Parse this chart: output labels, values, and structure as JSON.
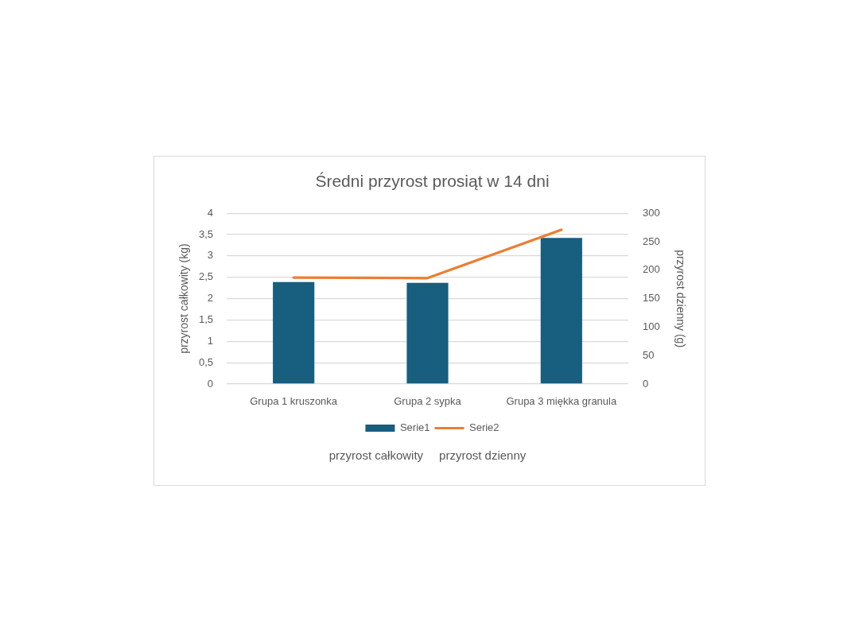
{
  "chart_data": {
    "type": "bar",
    "title": "Średni przyrost prosiąt w 14 dni",
    "ylabel": "przyrost całkowity (kg)",
    "y2label": "przyrost dzienny (g)",
    "categories": [
      "Grupa 1 kruszonka",
      "Grupa 2 sypka",
      "Grupa 3 miękka granula"
    ],
    "series": [
      {
        "name": "Serie1",
        "color": "#175e7f",
        "values": [
          2.39,
          2.37,
          3.42
        ]
      },
      {
        "name": "Serie2",
        "type": "line",
        "axis": "y2",
        "color": "#ed7d31",
        "values": [
          187,
          186,
          271
        ]
      }
    ],
    "ylim": [
      0,
      4
    ],
    "yticks": [
      0,
      {
        "value": 0.5,
        "label": "0,5"
      },
      1,
      {
        "value": 1.5,
        "label": "1,5"
      },
      2,
      {
        "value": 2.5,
        "label": "2,5"
      },
      3,
      {
        "value": 3.5,
        "label": "3,5"
      },
      4
    ],
    "y2lim": [
      0,
      300
    ],
    "y2ticks": [
      0,
      50,
      100,
      150,
      200,
      250,
      300
    ],
    "grid": "y",
    "legend": "bottom",
    "marker": "none",
    "annotations": [
      "przyrost całkowity",
      "przyrost dzienny"
    ]
  }
}
